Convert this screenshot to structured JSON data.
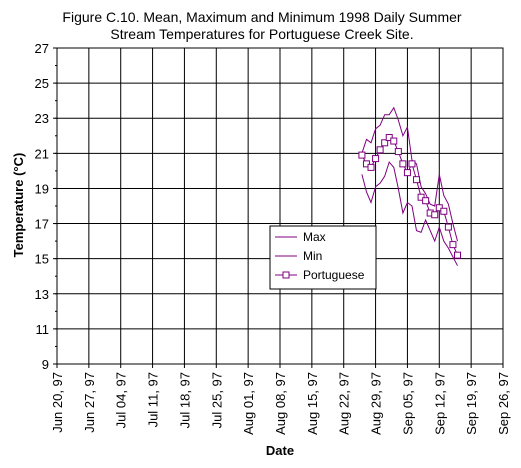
{
  "chart_data": {
    "type": "line",
    "title": "Figure C.10.  Mean, Maximum and Minimum 1998 Daily Summer",
    "subtitle": "Stream Temperatures for  Portuguese Creek Site.",
    "xlabel": "Date",
    "ylabel": "Temperature (°C)",
    "ylim": [
      9,
      27
    ],
    "yticks": [
      9,
      11,
      13,
      15,
      17,
      19,
      21,
      23,
      25,
      27
    ],
    "xlim": [
      "1997-06-20",
      "1997-09-26"
    ],
    "xticks": [
      {
        "date": "1997-06-20",
        "label": "Jun 20, 97"
      },
      {
        "date": "1997-06-27",
        "label": "Jun 27, 97"
      },
      {
        "date": "1997-07-04",
        "label": "Jul 04, 97"
      },
      {
        "date": "1997-07-11",
        "label": "Jul 11, 97"
      },
      {
        "date": "1997-07-18",
        "label": "Jul 18, 97"
      },
      {
        "date": "1997-07-25",
        "label": "Jul 25, 97"
      },
      {
        "date": "1997-08-01",
        "label": "Aug 01, 97"
      },
      {
        "date": "1997-08-08",
        "label": "Aug 08, 97"
      },
      {
        "date": "1997-08-15",
        "label": "Aug 15, 97"
      },
      {
        "date": "1997-08-22",
        "label": "Aug 22, 97"
      },
      {
        "date": "1997-08-29",
        "label": "Aug 29, 97"
      },
      {
        "date": "1997-09-05",
        "label": "Sep 05, 97"
      },
      {
        "date": "1997-09-12",
        "label": "Sep 12, 97"
      },
      {
        "date": "1997-09-19",
        "label": "Sep 19, 97"
      },
      {
        "date": "1997-09-26",
        "label": "Sep 26, 97"
      }
    ],
    "grid": true,
    "legend_position": "center-right",
    "colors": {
      "series": "#800080",
      "grid": "#000000"
    },
    "x": [
      "1997-08-26",
      "1997-08-27",
      "1997-08-28",
      "1997-08-29",
      "1997-08-30",
      "1997-08-31",
      "1997-09-01",
      "1997-09-02",
      "1997-09-03",
      "1997-09-04",
      "1997-09-05",
      "1997-09-06",
      "1997-09-07",
      "1997-09-08",
      "1997-09-09",
      "1997-09-10",
      "1997-09-11",
      "1997-09-12",
      "1997-09-13",
      "1997-09-14",
      "1997-09-15",
      "1997-09-16"
    ],
    "series": [
      {
        "name": "Max",
        "marker": "none",
        "values": [
          21.0,
          21.8,
          21.6,
          22.4,
          22.6,
          23.2,
          23.2,
          23.6,
          22.9,
          22.0,
          22.5,
          20.6,
          20.4,
          19.1,
          18.7,
          18.1,
          18.0,
          19.8,
          18.6,
          18.1,
          17.0,
          16.0
        ]
      },
      {
        "name": "Min",
        "marker": "none",
        "values": [
          19.8,
          18.8,
          18.2,
          19.1,
          19.3,
          19.7,
          20.5,
          20.2,
          19.0,
          17.6,
          18.2,
          18.0,
          16.6,
          16.5,
          17.2,
          16.6,
          16.0,
          16.8,
          16.0,
          15.6,
          15.1,
          14.6
        ]
      },
      {
        "name": "Portuguese",
        "marker": "square",
        "values": [
          20.9,
          20.4,
          20.2,
          20.7,
          21.2,
          21.6,
          21.9,
          21.7,
          21.1,
          20.4,
          19.9,
          20.4,
          19.5,
          18.5,
          18.3,
          17.6,
          17.5,
          17.9,
          17.7,
          16.8,
          15.8,
          15.2
        ]
      }
    ]
  }
}
